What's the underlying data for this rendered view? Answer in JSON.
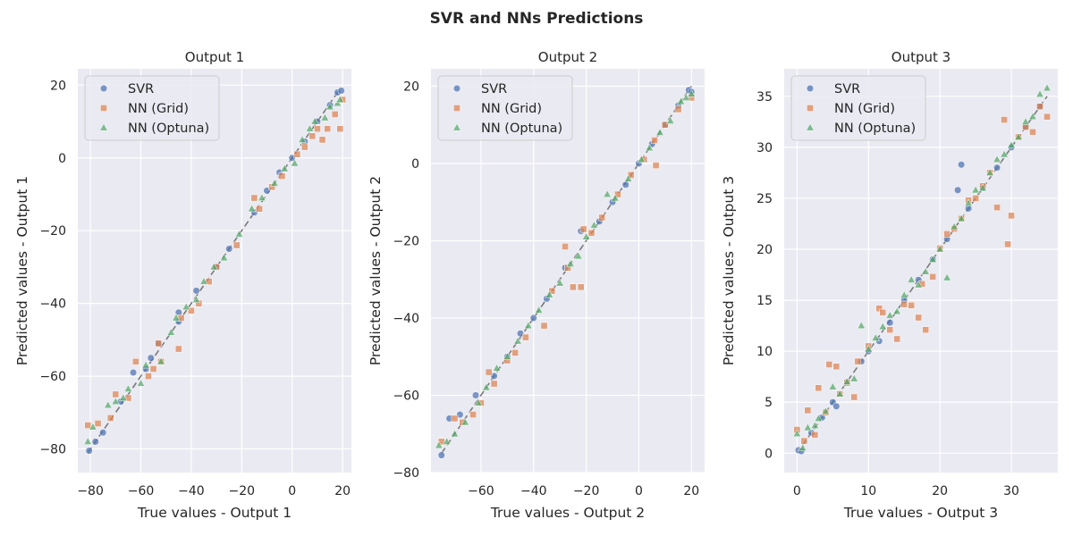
{
  "title": "SVR and NNs Predictions",
  "legend": [
    "SVR",
    "NN (Grid)",
    "NN (Optuna)"
  ],
  "colors": {
    "svr": "#4c72b0",
    "nn_grid": "#dd8452",
    "nn_optuna": "#55a868",
    "axes_bg": "#eaeaf2",
    "grid": "#ffffff",
    "identity_line": "#7a7a7a"
  },
  "chart_data": [
    {
      "type": "scatter",
      "title": "Output 1",
      "xlabel": "True values - Output 1",
      "ylabel": "Predicted values - Output 1",
      "xlim": [
        -85,
        23.5
      ],
      "ylim": [
        -86.5,
        24.5
      ],
      "xticks": [
        -80,
        -60,
        -40,
        -20,
        0,
        20
      ],
      "yticks": [
        -80,
        -60,
        -40,
        -20,
        0,
        20
      ],
      "legend_position": "upper-left",
      "grid": true,
      "identity_line": [
        -81,
        19
      ],
      "points_note": "approximate points read from figure (true, predicted)",
      "series": [
        {
          "name": "SVR",
          "marker": "circle",
          "points": [
            [
              -80.5,
              -80.5
            ],
            [
              -78,
              -78
            ],
            [
              -75,
              -75.5
            ],
            [
              -63,
              -59
            ],
            [
              -56,
              -55
            ],
            [
              -53,
              -51
            ],
            [
              -45,
              -42.5
            ],
            [
              -38,
              -36.5
            ],
            [
              -25,
              -25
            ],
            [
              -15,
              -15
            ],
            [
              -10,
              -9
            ],
            [
              -5,
              -4
            ],
            [
              0,
              0
            ],
            [
              5,
              4.5
            ],
            [
              10,
              10
            ],
            [
              15,
              14.5
            ],
            [
              18,
              18
            ],
            [
              19.5,
              18.5
            ],
            [
              -30,
              -30
            ],
            [
              -45,
              -45
            ],
            [
              -58,
              -58
            ],
            [
              -68,
              -67
            ]
          ]
        },
        {
          "name": "NN (Grid)",
          "marker": "square",
          "points": [
            [
              -81,
              -73.5
            ],
            [
              -77,
              -73
            ],
            [
              -72,
              -71.5
            ],
            [
              -70,
              -65
            ],
            [
              -65,
              -66
            ],
            [
              -62,
              -56
            ],
            [
              -57,
              -60
            ],
            [
              -55,
              -58
            ],
            [
              -53,
              -51
            ],
            [
              -52,
              -56
            ],
            [
              -45,
              -52.5
            ],
            [
              -44,
              -44
            ],
            [
              -40,
              -42
            ],
            [
              -37,
              -40
            ],
            [
              -33,
              -34
            ],
            [
              -30,
              -30
            ],
            [
              -22,
              -24
            ],
            [
              -15,
              -11
            ],
            [
              -13,
              -14
            ],
            [
              -8,
              -8
            ],
            [
              -4,
              -5
            ],
            [
              2,
              1
            ],
            [
              5,
              3
            ],
            [
              8,
              6
            ],
            [
              10,
              8
            ],
            [
              12,
              5
            ],
            [
              14,
              8
            ],
            [
              17,
              12
            ],
            [
              19,
              8
            ],
            [
              20,
              16
            ]
          ]
        },
        {
          "name": "NN (Optuna)",
          "marker": "triangle",
          "points": [
            [
              -81,
              -78
            ],
            [
              -79,
              -74
            ],
            [
              -73,
              -68
            ],
            [
              -70,
              -67
            ],
            [
              -67,
              -66
            ],
            [
              -65,
              -63.5
            ],
            [
              -60,
              -62
            ],
            [
              -58,
              -57
            ],
            [
              -52,
              -56
            ],
            [
              -48,
              -48
            ],
            [
              -46,
              -44
            ],
            [
              -42,
              -41
            ],
            [
              -38,
              -39
            ],
            [
              -35,
              -34
            ],
            [
              -31,
              -30
            ],
            [
              -27,
              -27.5
            ],
            [
              -21,
              -21
            ],
            [
              -16,
              -14
            ],
            [
              -12,
              -11
            ],
            [
              -7,
              -7
            ],
            [
              -3,
              -3
            ],
            [
              1,
              -1.5
            ],
            [
              4,
              5
            ],
            [
              7,
              8
            ],
            [
              9,
              10
            ],
            [
              13,
              11
            ],
            [
              15,
              14
            ],
            [
              18,
              15
            ],
            [
              19,
              16
            ]
          ]
        }
      ]
    },
    {
      "type": "scatter",
      "title": "Output 2",
      "xlabel": "True values - Output 2",
      "ylabel": "Predicted values - Output 2",
      "xlim": [
        -79,
        25
      ],
      "ylim": [
        -80,
        24.5
      ],
      "xticks": [
        -60,
        -40,
        -20,
        0,
        20
      ],
      "yticks": [
        -80,
        -60,
        -40,
        -20,
        0,
        20
      ],
      "legend_position": "upper-left",
      "grid": true,
      "identity_line": [
        -75,
        20
      ],
      "points_note": "approximate points read from figure (true, predicted)",
      "series": [
        {
          "name": "SVR",
          "marker": "circle",
          "points": [
            [
              -75,
              -75.5
            ],
            [
              -72,
              -66
            ],
            [
              -68,
              -65
            ],
            [
              -62,
              -60
            ],
            [
              -55,
              -55
            ],
            [
              -50,
              -50
            ],
            [
              -45,
              -44
            ],
            [
              -40,
              -40
            ],
            [
              -35,
              -35
            ],
            [
              -28,
              -27
            ],
            [
              -22,
              -17.5
            ],
            [
              -15,
              -15
            ],
            [
              -10,
              -10
            ],
            [
              -5,
              -5.5
            ],
            [
              0,
              0
            ],
            [
              5,
              5
            ],
            [
              10,
              10
            ],
            [
              15,
              15
            ],
            [
              19,
              19
            ],
            [
              20,
              18.5
            ]
          ]
        },
        {
          "name": "NN (Grid)",
          "marker": "square",
          "points": [
            [
              -75,
              -72
            ],
            [
              -70,
              -66
            ],
            [
              -67,
              -67
            ],
            [
              -63,
              -65
            ],
            [
              -60,
              -62
            ],
            [
              -57,
              -54
            ],
            [
              -55,
              -57
            ],
            [
              -50,
              -51
            ],
            [
              -47,
              -49
            ],
            [
              -43,
              -45
            ],
            [
              -36,
              -42
            ],
            [
              -33,
              -33
            ],
            [
              -28,
              -21.5
            ],
            [
              -27,
              -27
            ],
            [
              -25,
              -32
            ],
            [
              -22,
              -32
            ],
            [
              -21,
              -17
            ],
            [
              -18,
              -18
            ],
            [
              -14,
              -14
            ],
            [
              -8,
              -8
            ],
            [
              -3,
              -3
            ],
            [
              2,
              1
            ],
            [
              6,
              6
            ],
            [
              6.5,
              -0.5
            ],
            [
              10,
              10
            ],
            [
              15,
              14
            ],
            [
              20,
              17
            ]
          ]
        },
        {
          "name": "NN (Optuna)",
          "marker": "triangle",
          "points": [
            [
              -76,
              -73
            ],
            [
              -73,
              -72
            ],
            [
              -70,
              -70
            ],
            [
              -66,
              -67
            ],
            [
              -61,
              -62
            ],
            [
              -58,
              -58
            ],
            [
              -54,
              -53
            ],
            [
              -50,
              -50
            ],
            [
              -46,
              -46
            ],
            [
              -42,
              -42
            ],
            [
              -38,
              -38
            ],
            [
              -34,
              -34
            ],
            [
              -30,
              -31
            ],
            [
              -26,
              -26
            ],
            [
              -23,
              -24
            ],
            [
              -20,
              -19
            ],
            [
              -17,
              -16
            ],
            [
              -12,
              -8
            ],
            [
              -9,
              -9
            ],
            [
              -4,
              -4
            ],
            [
              1,
              1
            ],
            [
              4,
              4
            ],
            [
              8,
              8
            ],
            [
              12,
              11
            ],
            [
              16,
              16
            ],
            [
              18,
              17
            ],
            [
              20,
              18
            ]
          ]
        }
      ]
    },
    {
      "type": "scatter",
      "title": "Output 3",
      "xlabel": "True values - Output 3",
      "ylabel": "Predicted values - Output 3",
      "xlim": [
        -1.8,
        36.5
      ],
      "ylim": [
        -1.9,
        37.7
      ],
      "xticks": [
        0,
        10,
        20,
        30
      ],
      "yticks": [
        0,
        5,
        10,
        15,
        20,
        25,
        30,
        35
      ],
      "legend_position": "upper-left",
      "grid": true,
      "identity_line": [
        0,
        35
      ],
      "points_note": "approximate points read from figure (true, predicted)",
      "series": [
        {
          "name": "SVR",
          "marker": "circle",
          "points": [
            [
              0.2,
              0.3
            ],
            [
              0.6,
              0.2
            ],
            [
              2,
              2
            ],
            [
              3.5,
              3.5
            ],
            [
              5,
              5
            ],
            [
              5.5,
              4.6
            ],
            [
              7,
              7
            ],
            [
              9,
              9
            ],
            [
              10,
              10
            ],
            [
              11.5,
              11
            ],
            [
              13,
              12.8
            ],
            [
              15,
              15
            ],
            [
              17,
              17
            ],
            [
              19,
              19
            ],
            [
              21,
              21
            ],
            [
              22.5,
              25.8
            ],
            [
              23,
              28.3
            ],
            [
              24,
              24
            ],
            [
              26,
              26
            ],
            [
              28,
              28
            ],
            [
              30,
              30
            ],
            [
              32,
              32
            ],
            [
              34,
              34
            ]
          ]
        },
        {
          "name": "NN (Grid)",
          "marker": "square",
          "points": [
            [
              0,
              2.3
            ],
            [
              1,
              1.2
            ],
            [
              1.5,
              4.2
            ],
            [
              2.5,
              1.8
            ],
            [
              3,
              6.4
            ],
            [
              4,
              4
            ],
            [
              4.5,
              8.7
            ],
            [
              5.5,
              8.5
            ],
            [
              6,
              5.8
            ],
            [
              7,
              6.9
            ],
            [
              8,
              5.5
            ],
            [
              8.5,
              9
            ],
            [
              10,
              10.5
            ],
            [
              11.5,
              14.2
            ],
            [
              12,
              13.8
            ],
            [
              13,
              12.1
            ],
            [
              14,
              11.2
            ],
            [
              15,
              14.6
            ],
            [
              16,
              14.5
            ],
            [
              17,
              13.3
            ],
            [
              17.5,
              16.6
            ],
            [
              18,
              12.1
            ],
            [
              19,
              17.3
            ],
            [
              20,
              20.1
            ],
            [
              21,
              21.5
            ],
            [
              22,
              22
            ],
            [
              23,
              23
            ],
            [
              24,
              24.8
            ],
            [
              25,
              25
            ],
            [
              26,
              26.2
            ],
            [
              27,
              27.5
            ],
            [
              28,
              24.1
            ],
            [
              29,
              32.7
            ],
            [
              29.5,
              20.5
            ],
            [
              30,
              23.3
            ],
            [
              31,
              31
            ],
            [
              32,
              32
            ],
            [
              33,
              31.5
            ],
            [
              34,
              34
            ],
            [
              35,
              33
            ]
          ]
        },
        {
          "name": "NN (Optuna)",
          "marker": "triangle",
          "points": [
            [
              0,
              1.9
            ],
            [
              0.8,
              0.5
            ],
            [
              1.5,
              2.5
            ],
            [
              2.5,
              2.7
            ],
            [
              3,
              3.4
            ],
            [
              4,
              4.1
            ],
            [
              5,
              6.5
            ],
            [
              6,
              5.8
            ],
            [
              7,
              7
            ],
            [
              8,
              7.3
            ],
            [
              9,
              12.5
            ],
            [
              10,
              10.2
            ],
            [
              11,
              11.3
            ],
            [
              12,
              12.4
            ],
            [
              13,
              13.5
            ],
            [
              14,
              13.9
            ],
            [
              15,
              15.5
            ],
            [
              16,
              17
            ],
            [
              17,
              16.5
            ],
            [
              18,
              17.8
            ],
            [
              19,
              19
            ],
            [
              20,
              20
            ],
            [
              21,
              17.2
            ],
            [
              22,
              22.2
            ],
            [
              23,
              23
            ],
            [
              24,
              24.5
            ],
            [
              25,
              25.8
            ],
            [
              26,
              26
            ],
            [
              27,
              27.5
            ],
            [
              28,
              28.8
            ],
            [
              29,
              29.3
            ],
            [
              30,
              30.2
            ],
            [
              31,
              31
            ],
            [
              32,
              32.5
            ],
            [
              33,
              33
            ],
            [
              34,
              35.2
            ],
            [
              35,
              35.8
            ]
          ]
        }
      ]
    }
  ]
}
